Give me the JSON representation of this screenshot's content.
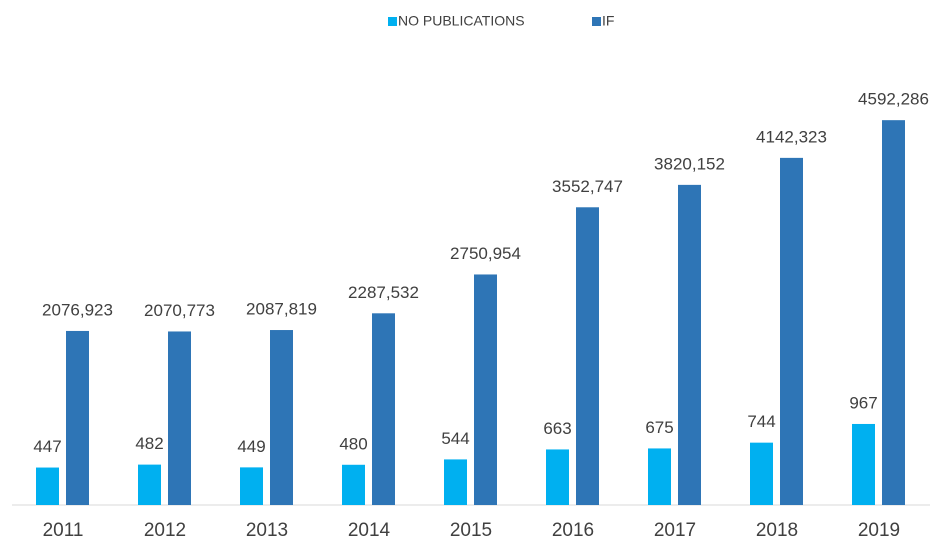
{
  "chart_data": {
    "type": "bar",
    "categories": [
      "2011",
      "2012",
      "2013",
      "2014",
      "2015",
      "2016",
      "2017",
      "2018",
      "2019"
    ],
    "series": [
      {
        "name": "NO PUBLICATIONS",
        "color": "#00b0f0",
        "values": [
          447,
          482,
          449,
          480,
          544,
          663,
          675,
          744,
          967
        ]
      },
      {
        "name": "IF",
        "color": "#2e75b6",
        "values": [
          2076.923,
          2070.773,
          2087.819,
          2287.532,
          2750.954,
          3552.747,
          3820.152,
          4142.323,
          4592.286
        ],
        "value_labels": [
          "2076,923",
          "2070,773",
          "2087,819",
          "2287,532",
          "2750,954",
          "3552,747",
          "3820,152",
          "4142,323",
          "4592,286"
        ]
      }
    ],
    "ylim": [
      0,
      5000
    ],
    "legend": "top"
  }
}
